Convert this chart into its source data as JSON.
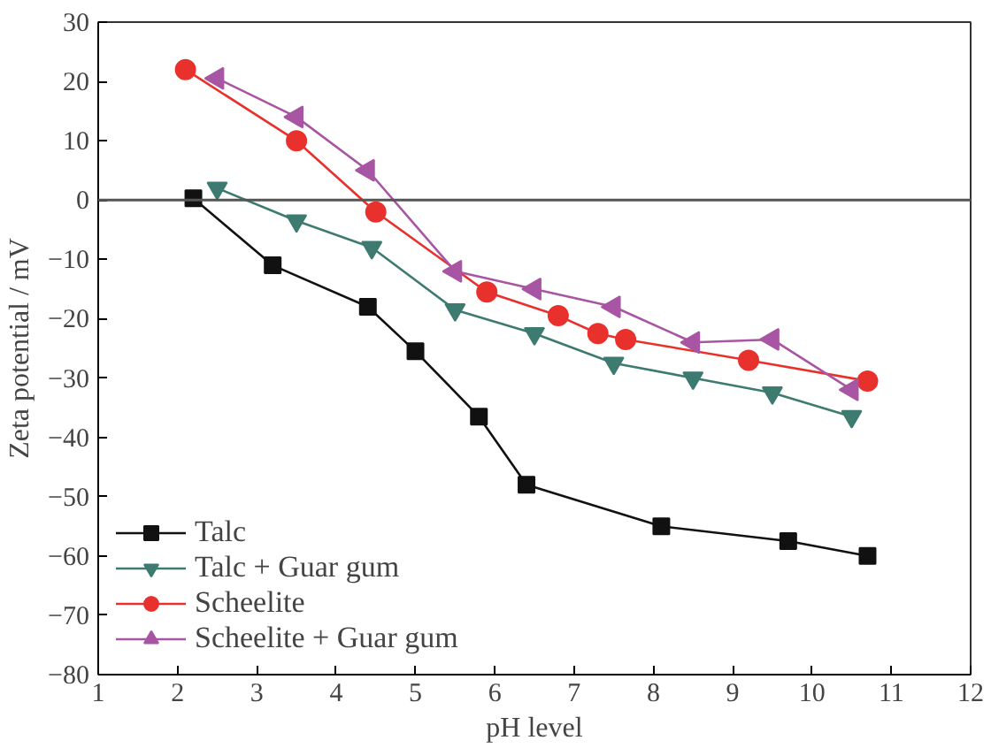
{
  "chart_data": {
    "type": "line",
    "xlabel": "pH level",
    "ylabel": "Zeta potential / mV",
    "xlim": [
      1,
      12
    ],
    "xticks": [
      1,
      2,
      3,
      4,
      5,
      6,
      7,
      8,
      9,
      10,
      11,
      12
    ],
    "ylim": [
      -80,
      30
    ],
    "yticks": [
      -80,
      -70,
      -60,
      -50,
      -40,
      -30,
      -20,
      -10,
      0,
      10,
      20,
      30
    ],
    "grid": false,
    "legend": "bottom left",
    "ref_lines": [
      {
        "axis": "y",
        "value": 0,
        "color": "#555555"
      }
    ],
    "series": [
      {
        "name": "Talc",
        "color": "#111111",
        "marker": "square",
        "x": [
          2.2,
          3.2,
          4.4,
          5.0,
          5.8,
          6.4,
          8.1,
          9.7,
          10.7
        ],
        "values": [
          0.3,
          -11,
          -18,
          -25.5,
          -36.5,
          -48,
          -55,
          -57.5,
          -60
        ]
      },
      {
        "name": "Talc + Guar gum",
        "color": "#3d7a70",
        "marker": "triangle",
        "x": [
          2.5,
          3.5,
          4.45,
          5.5,
          6.5,
          7.5,
          8.5,
          9.5,
          10.5
        ],
        "values": [
          2,
          -3.5,
          -8,
          -18.5,
          -22.5,
          -27.5,
          -30,
          -32.5,
          -36.5
        ]
      },
      {
        "name": "Scheelite",
        "color": "#e8312d",
        "marker": "circle",
        "x": [
          2.1,
          3.5,
          4.5,
          5.9,
          6.8,
          7.3,
          7.65,
          9.2,
          10.7
        ],
        "values": [
          22,
          10,
          -2,
          -15.5,
          -19.5,
          -22.5,
          -23.5,
          -27,
          -30.5
        ]
      },
      {
        "name": "Scheelite + Guar gum",
        "color": "#a855a3",
        "marker": "triangle_left",
        "x": [
          2.5,
          3.5,
          4.4,
          5.5,
          6.5,
          7.5,
          8.5,
          9.5,
          10.5
        ],
        "values": [
          20.5,
          14,
          5,
          -12,
          -15,
          -18,
          -24,
          -23.5,
          -32
        ]
      }
    ]
  }
}
